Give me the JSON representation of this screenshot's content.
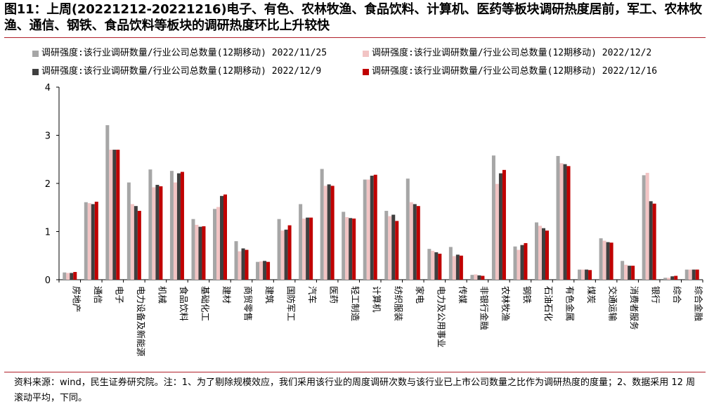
{
  "title": "图11：上周(20221212-20221216)电子、有色、农林牧渔、食品饮料、计算机、医药等板块调研热度居前，军工、农林牧渔、通信、钢铁、食品饮料等板块的调研热度环比上升较快",
  "source": "资料来源：wind，民生证券研究院。注：1、为了剔除规模效应，我们采用该行业的周度调研次数与该行业已上市公司数量之比作为调研热度的度量；2、数据采用 12 周滚动平均，下同。",
  "chart_data": {
    "type": "bar",
    "ylim": [
      0,
      4
    ],
    "yticks": [
      "0",
      "1",
      "2",
      "3",
      "4"
    ],
    "legend_position": "top",
    "categories": [
      "房地产",
      "通信",
      "电子",
      "电力设备及新能源",
      "机械",
      "食品饮料",
      "基础化工",
      "建材",
      "商贸零售",
      "建筑",
      "国防军工",
      "汽车",
      "医药",
      "轻工制造",
      "计算机",
      "纺织服装",
      "家电",
      "电力及公用事业",
      "传媒",
      "非银行金融",
      "农林牧渔",
      "钢铁",
      "石油石化",
      "有色金属",
      "煤炭",
      "交通运输",
      "消费者服务",
      "银行",
      "综合",
      "综合金融"
    ],
    "series": [
      {
        "name": "调研强度:该行业调研数量/行业公司总数量(12期移动) 2022/11/25",
        "color": "#a6a6a6",
        "values": [
          0.15,
          1.61,
          3.21,
          2.02,
          2.29,
          2.26,
          1.26,
          1.47,
          0.8,
          0.37,
          1.26,
          1.57,
          2.3,
          1.41,
          2.08,
          1.43,
          2.1,
          0.64,
          0.68,
          0.1,
          2.58,
          0.69,
          1.19,
          2.57,
          0.21,
          0.86,
          0.39,
          2.17,
          0.04,
          0.21
        ]
      },
      {
        "name": "调研强度:该行业调研数量/行业公司总数量(12期移动) 2022/12/2",
        "color": "#f2c4c4",
        "values": [
          0.14,
          1.59,
          2.7,
          1.57,
          1.92,
          2.02,
          1.14,
          1.51,
          0.59,
          0.38,
          1.02,
          1.27,
          1.95,
          1.3,
          2.08,
          1.32,
          1.61,
          0.6,
          0.49,
          0.11,
          1.99,
          0.62,
          1.12,
          2.42,
          0.21,
          0.81,
          0.31,
          2.22,
          0.04,
          0.21
        ]
      },
      {
        "name": "调研强度:该行业调研数量/行业公司总数量(12期移动) 2022/12/9",
        "color": "#3f3f3f",
        "values": [
          0.14,
          1.57,
          2.7,
          1.53,
          1.97,
          2.21,
          1.1,
          1.74,
          0.65,
          0.39,
          1.04,
          1.29,
          1.98,
          1.28,
          2.16,
          1.35,
          1.57,
          0.57,
          0.52,
          0.09,
          2.21,
          0.72,
          1.07,
          2.4,
          0.21,
          0.78,
          0.29,
          1.63,
          0.07,
          0.21
        ]
      },
      {
        "name": "调研强度:该行业调研数量/行业公司总数量(12期移动) 2022/12/16",
        "color": "#c00000",
        "values": [
          0.16,
          1.62,
          2.7,
          1.43,
          1.94,
          2.24,
          1.11,
          1.77,
          0.62,
          0.37,
          1.13,
          1.29,
          1.95,
          1.27,
          2.18,
          1.22,
          1.53,
          0.54,
          0.5,
          0.08,
          2.28,
          0.76,
          1.02,
          2.36,
          0.2,
          0.77,
          0.29,
          1.58,
          0.08,
          0.21
        ]
      }
    ]
  }
}
